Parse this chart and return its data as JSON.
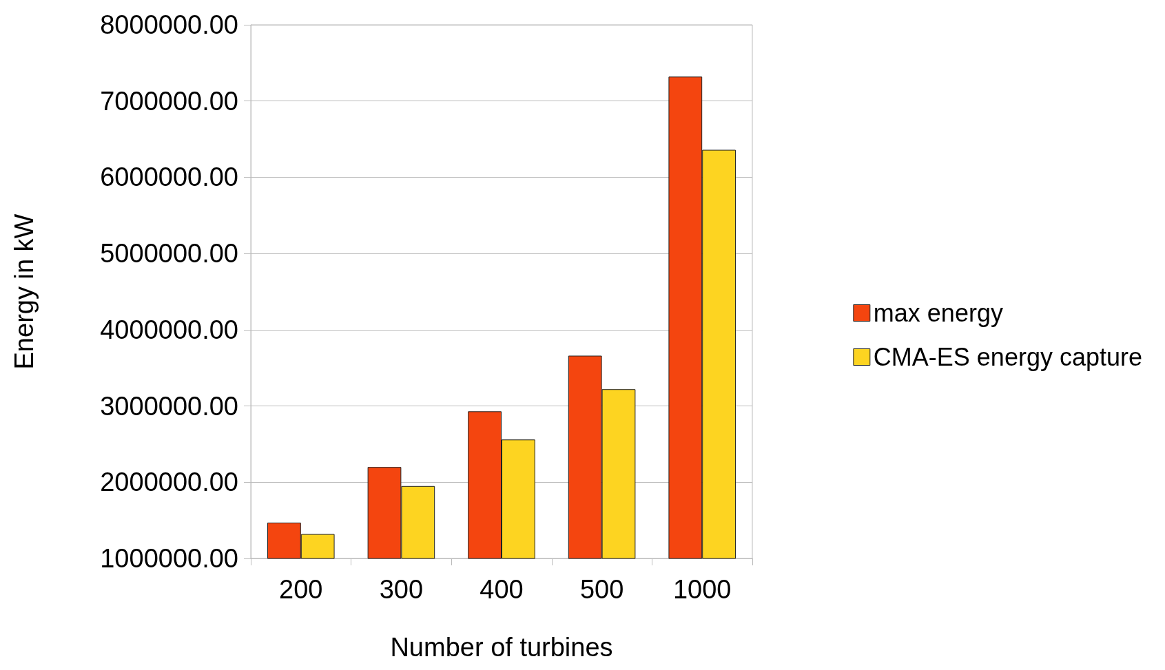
{
  "chart_data": {
    "type": "bar",
    "xlabel": "Number of turbines",
    "ylabel": "Energy in kW",
    "categories": [
      "200",
      "300",
      "400",
      "500",
      "1000"
    ],
    "series": [
      {
        "name": "max energy",
        "color": "#f4450f",
        "values": [
          1470000,
          2200000,
          2930000,
          3660000,
          7320000
        ]
      },
      {
        "name": "CMA-ES energy capture",
        "color": "#fdd421",
        "values": [
          1320000,
          1950000,
          2560000,
          3220000,
          6360000
        ]
      }
    ],
    "ylim": [
      1000000,
      8000000
    ],
    "yticks": [
      {
        "value": 1000000,
        "label": "1000000.00"
      },
      {
        "value": 2000000,
        "label": "2000000.00"
      },
      {
        "value": 3000000,
        "label": "3000000.00"
      },
      {
        "value": 4000000,
        "label": "4000000.00"
      },
      {
        "value": 5000000,
        "label": "5000000.00"
      },
      {
        "value": 6000000,
        "label": "6000000.00"
      },
      {
        "value": 7000000,
        "label": "7000000.00"
      },
      {
        "value": 8000000,
        "label": "8000000.00"
      }
    ],
    "grid": "y",
    "legend": "right"
  }
}
